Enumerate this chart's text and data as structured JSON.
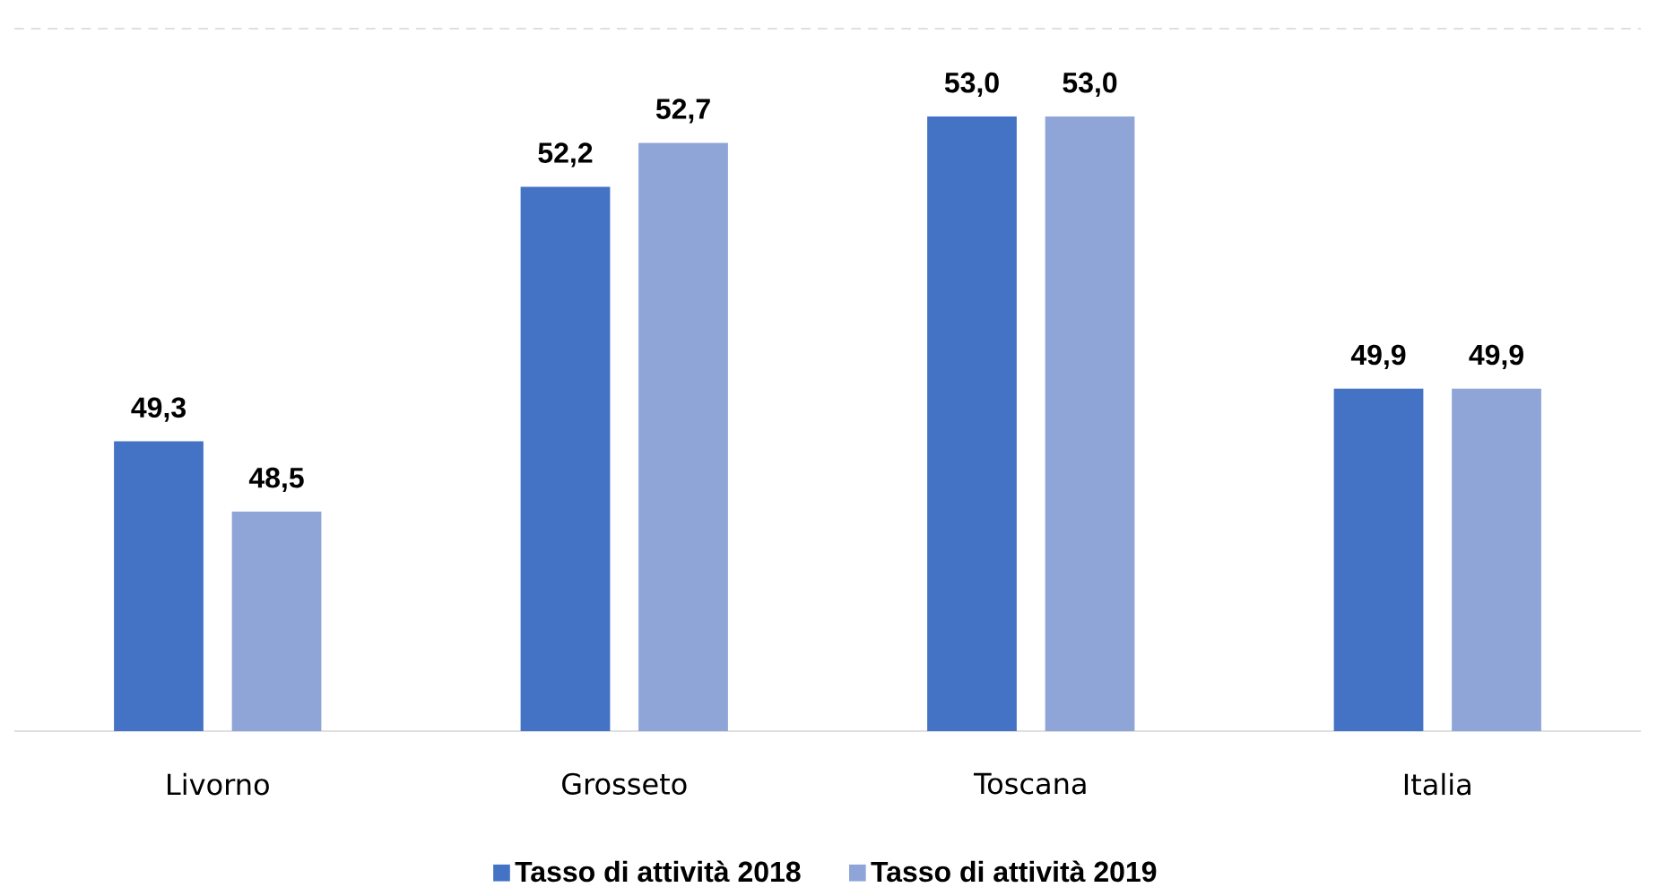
{
  "chart_data": {
    "type": "bar",
    "categories": [
      "Livorno",
      "Grosseto",
      "Toscana",
      "Italia"
    ],
    "series": [
      {
        "name": "Tasso di attività 2018",
        "color": "#4472c4",
        "values": [
          49.3,
          52.2,
          53.0,
          49.9
        ],
        "value_labels": [
          "49,3",
          "52,2",
          "53,0",
          "49,9"
        ]
      },
      {
        "name": "Tasso di attività 2019",
        "color": "#8fa5d7",
        "values": [
          48.5,
          52.7,
          53.0,
          49.9
        ],
        "value_labels": [
          "48,5",
          "52,7",
          "53,0",
          "49,9"
        ]
      }
    ],
    "ylim": [
      46,
      54
    ],
    "tick_labels": "x",
    "legend": "bottom"
  }
}
